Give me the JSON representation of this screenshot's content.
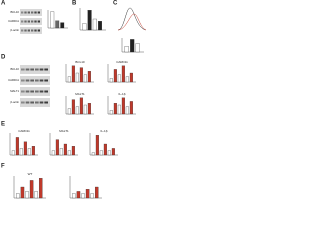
{
  "panels": [
    {
      "letter": "A",
      "blot_labels": [
        "BCL10",
        "CARD11",
        "β-actin"
      ]
    },
    {
      "letter": "B"
    },
    {
      "letter": "C"
    },
    {
      "letter": "D",
      "blot_labels": [
        "BCL10",
        "CARD11",
        "MALT1",
        "β-actin"
      ],
      "plot_titles": [
        "BCL10",
        "CARD11",
        "MALT1",
        "IL-1β"
      ]
    },
    {
      "letter": "E",
      "plot_titles": [
        "CARD11",
        "MALT1",
        "IL-1β"
      ]
    },
    {
      "letter": "F",
      "plot_titles": [
        "WT"
      ]
    }
  ]
}
